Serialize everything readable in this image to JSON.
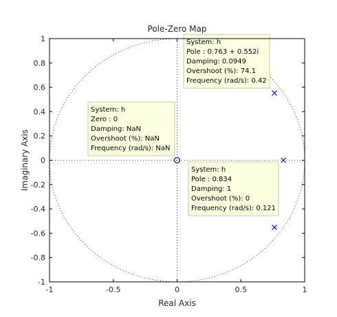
{
  "chart_data": {
    "type": "scatter",
    "title": "Pole-Zero Map",
    "xlabel": "Real Axis",
    "ylabel": "Imaginary Axis",
    "xlim": [
      -1,
      1
    ],
    "ylim": [
      -1,
      1
    ],
    "x_ticks": [
      "-1",
      "-0.5",
      "0",
      "0.5",
      "1"
    ],
    "y_ticks": [
      "1",
      "0.8",
      "0.6",
      "0.4",
      "0.2",
      "0",
      "-0.2",
      "-0.4",
      "-0.6",
      "-0.8",
      "-1"
    ],
    "unit_circle": true,
    "grid": false,
    "colors": {
      "marker": "#0000ff",
      "axes": "#000000",
      "tooltip_bg": "#ffffe1"
    },
    "zeros": [
      {
        "x": 0,
        "y": 0
      }
    ],
    "poles": [
      {
        "x": 0.763,
        "y": 0.552
      },
      {
        "x": 0.763,
        "y": -0.552
      },
      {
        "x": 0.834,
        "y": 0
      }
    ],
    "datatips": [
      {
        "id": "pole-upper",
        "anchor": {
          "x": 0.763,
          "y": 0.552
        },
        "lines": [
          "System: h",
          "Pole : 0.763 + 0.552i",
          "Damping: 0.0949",
          "Overshoot (%): 74.1",
          "Frequency (rad/s): 0.42"
        ]
      },
      {
        "id": "zero",
        "anchor": {
          "x": 0,
          "y": 0
        },
        "lines": [
          "System: h",
          "Zero : 0",
          "Damping: NaN",
          "Overshoot (%): NaN",
          "Frequency (rad/s): NaN"
        ]
      },
      {
        "id": "pole-real",
        "anchor": {
          "x": 0.834,
          "y": 0
        },
        "lines": [
          "System: h",
          "Pole : 0.834",
          "Damping: 1",
          "Overshoot (%): 0",
          "Frequency (rad/s): 0.121"
        ]
      }
    ]
  }
}
